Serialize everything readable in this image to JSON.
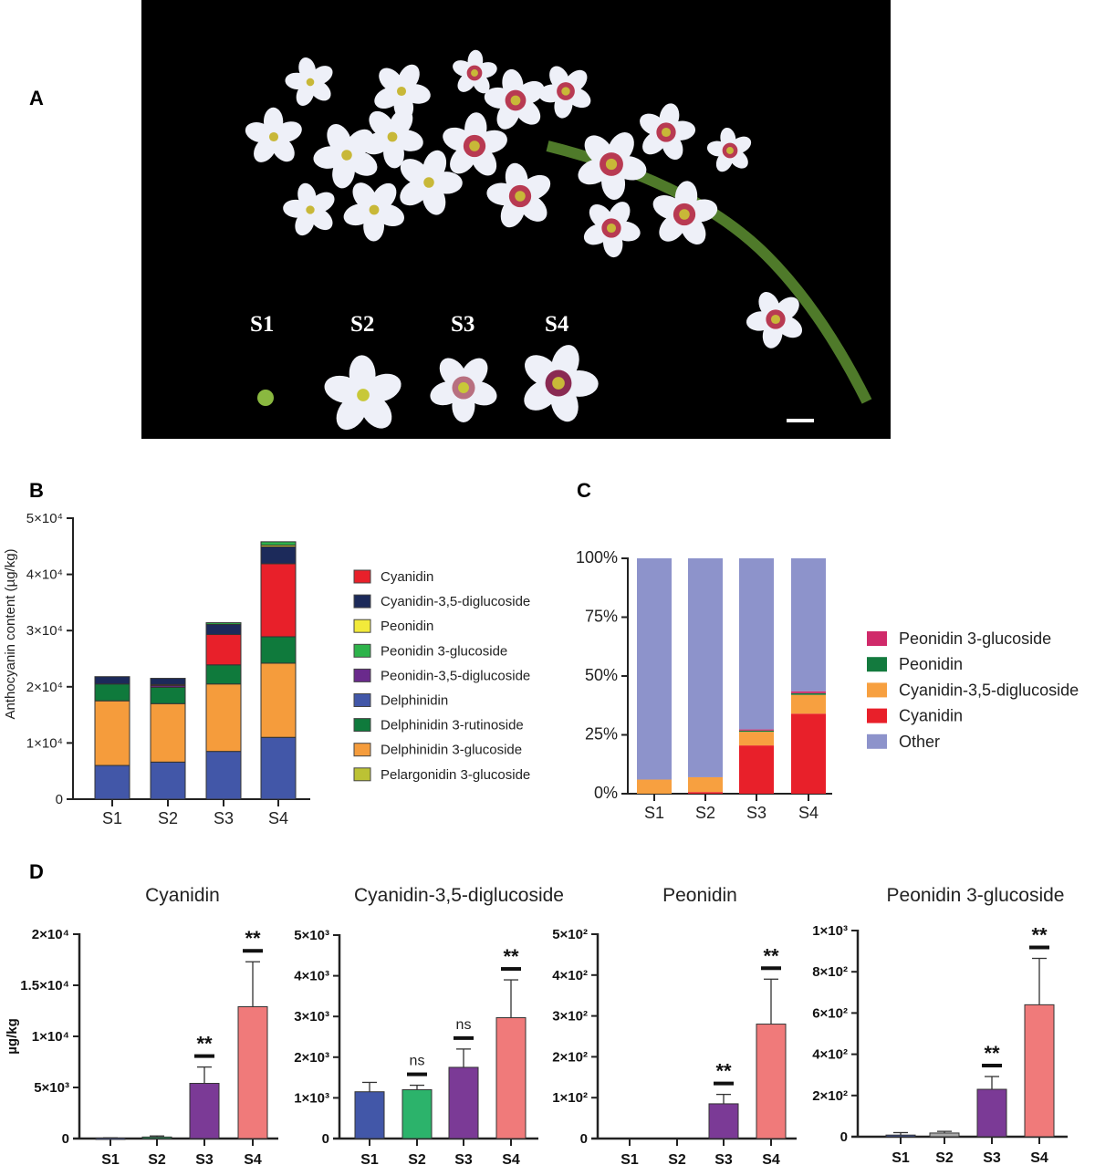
{
  "panels": {
    "a": "A",
    "b": "B",
    "c": "C",
    "d": "D"
  },
  "photo": {
    "stage_labels": [
      "S1",
      "S2",
      "S3",
      "S4"
    ],
    "background": "#000000"
  },
  "chart_data": [
    {
      "id": "B",
      "type": "bar",
      "stacked": true,
      "categories": [
        "S1",
        "S2",
        "S3",
        "S4"
      ],
      "ylabel": "Anthocyanin content (µg/kg)",
      "ylim": [
        0,
        50000
      ],
      "yticks": [
        0,
        10000,
        20000,
        30000,
        40000,
        50000
      ],
      "ytick_labels": [
        "0",
        "1×10⁴",
        "2×10⁴",
        "3×10⁴",
        "4×10⁴",
        "5×10⁴"
      ],
      "legend_position": "right",
      "series": [
        {
          "name": "Cyanidin",
          "color": "#e8202a",
          "values": [
            0,
            200,
            5400,
            13000
          ]
        },
        {
          "name": "Cyanidin-3,5-diglucoside",
          "color": "#1c2a5a",
          "values": [
            1300,
            1100,
            1800,
            3000
          ]
        },
        {
          "name": "Peonidin",
          "color": "#f2ea3a",
          "values": [
            0,
            0,
            0,
            300
          ]
        },
        {
          "name": "Peonidin 3-glucoside",
          "color": "#2db34a",
          "values": [
            0,
            0,
            300,
            600
          ]
        },
        {
          "name": "Peonidin-3,5-diglucoside",
          "color": "#6a2a8c",
          "values": [
            0,
            300,
            0,
            0
          ]
        },
        {
          "name": "Delphinidin",
          "color": "#4257a8",
          "values": [
            6000,
            6600,
            8500,
            11000
          ]
        },
        {
          "name": "Delphinidin 3-rutinoside",
          "color": "#0f7a3c",
          "values": [
            3000,
            2900,
            3400,
            4700
          ]
        },
        {
          "name": "Delphinidin 3-glucoside",
          "color": "#f59c3c",
          "values": [
            11500,
            10400,
            12000,
            13200
          ]
        },
        {
          "name": "Pelargonidin 3-glucoside",
          "color": "#bcc234",
          "values": [
            0,
            0,
            0,
            0
          ]
        }
      ]
    },
    {
      "id": "C",
      "type": "bar",
      "stacked": true,
      "percent": true,
      "categories": [
        "S1",
        "S2",
        "S3",
        "S4"
      ],
      "ylim": [
        0,
        100
      ],
      "yticks": [
        0,
        25,
        50,
        75,
        100
      ],
      "ytick_labels": [
        "0%",
        "25%",
        "50%",
        "75%",
        "100%"
      ],
      "legend_position": "right",
      "series": [
        {
          "name": "Peonidin 3-glucoside",
          "color": "#d02a6a",
          "values": [
            0,
            0,
            0.5,
            0.8
          ]
        },
        {
          "name": "Peonidin",
          "color": "#137a3e",
          "values": [
            0,
            0,
            0.5,
            0.7
          ]
        },
        {
          "name": "Cyanidin-3,5-diglucoside",
          "color": "#f7a040",
          "values": [
            6,
            6.3,
            5.8,
            8
          ]
        },
        {
          "name": "Cyanidin",
          "color": "#e8202a",
          "values": [
            0,
            0.7,
            20.5,
            34
          ]
        },
        {
          "name": "Other",
          "color": "#8d93cb",
          "values": [
            94,
            93,
            72.7,
            56.5
          ]
        }
      ]
    },
    {
      "id": "D1",
      "type": "bar",
      "title": "Cyanidin",
      "ylabel": "µg/kg",
      "categories": [
        "S1",
        "S2",
        "S3",
        "S4"
      ],
      "values": [
        50,
        150,
        5400,
        12900
      ],
      "errors": [
        20,
        100,
        1600,
        4400
      ],
      "significance": [
        "",
        "",
        "**",
        "**"
      ],
      "ylim": [
        0,
        20000
      ],
      "yticks": [
        0,
        5000,
        10000,
        15000,
        20000
      ],
      "ytick_labels": [
        "0",
        "5×10³",
        "1×10⁴",
        "1.5×10⁴",
        "2×10⁴"
      ],
      "colors": [
        "#4257a8",
        "#2cb36b",
        "#7b3a96",
        "#f07a7a"
      ]
    },
    {
      "id": "D2",
      "type": "bar",
      "title": "Cyanidin-3,5-diglucoside",
      "categories": [
        "S1",
        "S2",
        "S3",
        "S4"
      ],
      "values": [
        1150,
        1200,
        1750,
        2970
      ],
      "errors": [
        230,
        110,
        450,
        930
      ],
      "significance": [
        "",
        "ns",
        "ns",
        "**"
      ],
      "ylim": [
        0,
        5000
      ],
      "yticks": [
        0,
        1000,
        2000,
        3000,
        4000,
        5000
      ],
      "ytick_labels": [
        "0",
        "1×10³",
        "2×10³",
        "3×10³",
        "4×10³",
        "5×10³"
      ],
      "colors": [
        "#4257a8",
        "#2cb36b",
        "#7b3a96",
        "#f07a7a"
      ]
    },
    {
      "id": "D3",
      "type": "bar",
      "title": "Peonidin",
      "categories": [
        "S1",
        "S2",
        "S3",
        "S4"
      ],
      "values": [
        0,
        0,
        85,
        280
      ],
      "errors": [
        0,
        0,
        23,
        110
      ],
      "significance": [
        "",
        "",
        "**",
        "**"
      ],
      "ylim": [
        0,
        500
      ],
      "yticks": [
        0,
        100,
        200,
        300,
        400,
        500
      ],
      "ytick_labels": [
        "0",
        "1×10²",
        "2×10²",
        "3×10²",
        "4×10²",
        "5×10²"
      ],
      "colors": [
        "#4257a8",
        "#2cb36b",
        "#7b3a96",
        "#f07a7a"
      ]
    },
    {
      "id": "D4",
      "type": "bar",
      "title": "Peonidin 3-glucoside",
      "categories": [
        "S1",
        "S2",
        "S3",
        "S4"
      ],
      "values": [
        8,
        18,
        230,
        640
      ],
      "errors": [
        12,
        8,
        62,
        225
      ],
      "significance": [
        "",
        "",
        "**",
        "**"
      ],
      "ylim": [
        0,
        1000
      ],
      "yticks": [
        0,
        200,
        400,
        600,
        800,
        1000
      ],
      "ytick_labels": [
        "0",
        "2×10²",
        "4×10²",
        "6×10²",
        "8×10²",
        "1×10³"
      ],
      "colors": [
        "#4257a8",
        "#aaaaaa",
        "#7b3a96",
        "#f07a7a"
      ]
    }
  ]
}
